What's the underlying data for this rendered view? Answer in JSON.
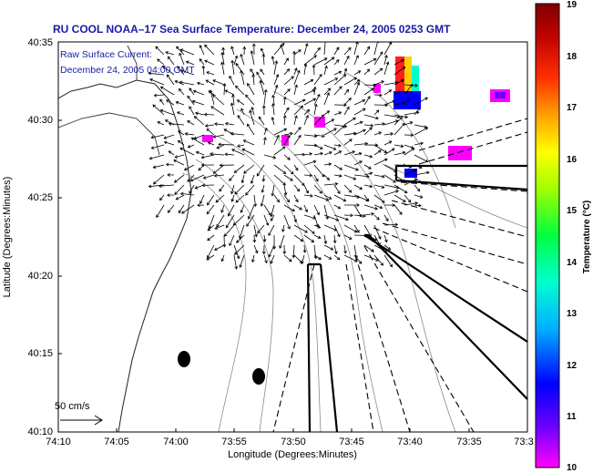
{
  "chart_data": {
    "type": "map",
    "title": "RU COOL  NOAA–17  Sea Surface Temperature:  December 24, 2005 0253 GMT",
    "legend_lines": [
      "Raw Surface Current:",
      "December 24, 2005 04:00 GMT"
    ],
    "xlabel": "Longitude (Degrees:Minutes)",
    "ylabel": "Latitude (Degrees:Minutes)",
    "x_ticks": [
      "74:10",
      "74:05",
      "74:00",
      "73:55",
      "73:50",
      "73:45",
      "73:40",
      "73:35",
      "73:3"
    ],
    "y_ticks": [
      "40:10",
      "40:15",
      "40:20",
      "40:25",
      "40:30",
      "40:35"
    ],
    "xlim_deg_min": [
      "74:10",
      "73:30"
    ],
    "ylim_deg_min": [
      "40:10",
      "40:35"
    ],
    "scale_arrow_label": "50 cm/s",
    "colorbar": {
      "label": "Temperature (°C)",
      "min": 10,
      "max": 19,
      "ticks": [
        "19",
        "18",
        "17",
        "16",
        "15",
        "14",
        "13",
        "12",
        "11",
        "10"
      ],
      "colors": [
        "#ff00ff",
        "#6a00ff",
        "#0000ff",
        "#00b0ff",
        "#00ffd0",
        "#00ff40",
        "#a0ff00",
        "#ffff00",
        "#ffa000",
        "#ff3000",
        "#c00000",
        "#800000"
      ]
    }
  }
}
